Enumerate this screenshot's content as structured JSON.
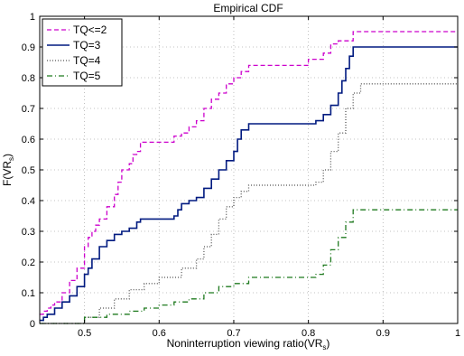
{
  "chart_data": {
    "type": "line",
    "title": "Empirical CDF",
    "xlabel": "Noninterruption viewing ratio(VR",
    "xlabel_sub": "s",
    "xlabel_suffix": ")",
    "ylabel": "F(VR",
    "ylabel_sub": "s",
    "ylabel_suffix": ")",
    "xlim": [
      0.44,
      1.0
    ],
    "ylim": [
      0,
      1
    ],
    "xticks": [
      0.5,
      0.6,
      0.7,
      0.8,
      0.9,
      1
    ],
    "xtick_labels": [
      "0.5",
      "0.6",
      "0.7",
      "0.8",
      "0.9",
      "1"
    ],
    "yticks": [
      0,
      0.1,
      0.2,
      0.3,
      0.4,
      0.5,
      0.6,
      0.7,
      0.8,
      0.9,
      1
    ],
    "ytick_labels": [
      "0",
      "0.1",
      "0.2",
      "0.3",
      "0.4",
      "0.5",
      "0.6",
      "0.7",
      "0.8",
      "0.9",
      "1"
    ],
    "grid": true,
    "legend_position": "top-left",
    "series": [
      {
        "name": "TQ<=2",
        "color": "#cc00cc",
        "dash": "dashed",
        "x": [
          0.44,
          0.445,
          0.45,
          0.455,
          0.46,
          0.47,
          0.48,
          0.49,
          0.5,
          0.505,
          0.51,
          0.515,
          0.52,
          0.53,
          0.54,
          0.545,
          0.55,
          0.56,
          0.565,
          0.57,
          0.575,
          0.6,
          0.61,
          0.62,
          0.63,
          0.64,
          0.65,
          0.66,
          0.67,
          0.68,
          0.69,
          0.7,
          0.71,
          0.72,
          0.78,
          0.79,
          0.8,
          0.81,
          0.82,
          0.83,
          0.84,
          0.86,
          0.9,
          1.0
        ],
        "y": [
          0.03,
          0.04,
          0.05,
          0.06,
          0.07,
          0.1,
          0.14,
          0.18,
          0.25,
          0.28,
          0.3,
          0.32,
          0.34,
          0.38,
          0.42,
          0.46,
          0.5,
          0.52,
          0.55,
          0.56,
          0.59,
          0.59,
          0.59,
          0.61,
          0.62,
          0.64,
          0.66,
          0.7,
          0.73,
          0.75,
          0.78,
          0.8,
          0.82,
          0.84,
          0.84,
          0.84,
          0.86,
          0.86,
          0.88,
          0.91,
          0.92,
          0.95,
          0.95,
          0.95
        ]
      },
      {
        "name": "TQ=3",
        "color": "#001a80",
        "dash": "solid",
        "x": [
          0.44,
          0.445,
          0.45,
          0.46,
          0.47,
          0.48,
          0.49,
          0.5,
          0.505,
          0.51,
          0.52,
          0.53,
          0.54,
          0.55,
          0.56,
          0.57,
          0.575,
          0.58,
          0.6,
          0.62,
          0.625,
          0.63,
          0.64,
          0.65,
          0.66,
          0.67,
          0.68,
          0.69,
          0.7,
          0.705,
          0.71,
          0.72,
          0.8,
          0.81,
          0.82,
          0.83,
          0.84,
          0.845,
          0.85,
          0.855,
          0.86,
          1.0
        ],
        "y": [
          0.01,
          0.02,
          0.03,
          0.05,
          0.07,
          0.09,
          0.12,
          0.16,
          0.18,
          0.21,
          0.25,
          0.27,
          0.29,
          0.3,
          0.31,
          0.33,
          0.34,
          0.34,
          0.34,
          0.35,
          0.37,
          0.39,
          0.4,
          0.41,
          0.44,
          0.47,
          0.5,
          0.53,
          0.56,
          0.6,
          0.63,
          0.65,
          0.65,
          0.66,
          0.68,
          0.71,
          0.75,
          0.79,
          0.83,
          0.87,
          0.9,
          0.9
        ]
      },
      {
        "name": "TQ=4",
        "color": "#555555",
        "dash": "dotted",
        "x": [
          0.44,
          0.5,
          0.52,
          0.54,
          0.56,
          0.58,
          0.6,
          0.62,
          0.63,
          0.65,
          0.66,
          0.67,
          0.68,
          0.69,
          0.7,
          0.71,
          0.72,
          0.8,
          0.81,
          0.82,
          0.83,
          0.84,
          0.85,
          0.86,
          0.87,
          1.0
        ],
        "y": [
          0.0,
          0.02,
          0.05,
          0.08,
          0.11,
          0.13,
          0.15,
          0.15,
          0.18,
          0.21,
          0.25,
          0.29,
          0.34,
          0.38,
          0.41,
          0.43,
          0.45,
          0.45,
          0.46,
          0.5,
          0.56,
          0.62,
          0.7,
          0.75,
          0.78,
          0.78
        ]
      },
      {
        "name": "TQ=5",
        "color": "#1f7a1f",
        "dash": "dashdot",
        "x": [
          0.44,
          0.5,
          0.53,
          0.56,
          0.58,
          0.6,
          0.62,
          0.64,
          0.66,
          0.68,
          0.7,
          0.72,
          0.8,
          0.81,
          0.82,
          0.83,
          0.84,
          0.85,
          0.86,
          1.0
        ],
        "y": [
          0.0,
          0.02,
          0.03,
          0.04,
          0.05,
          0.06,
          0.07,
          0.08,
          0.1,
          0.12,
          0.13,
          0.15,
          0.15,
          0.16,
          0.19,
          0.24,
          0.28,
          0.33,
          0.37,
          0.37
        ]
      }
    ]
  }
}
